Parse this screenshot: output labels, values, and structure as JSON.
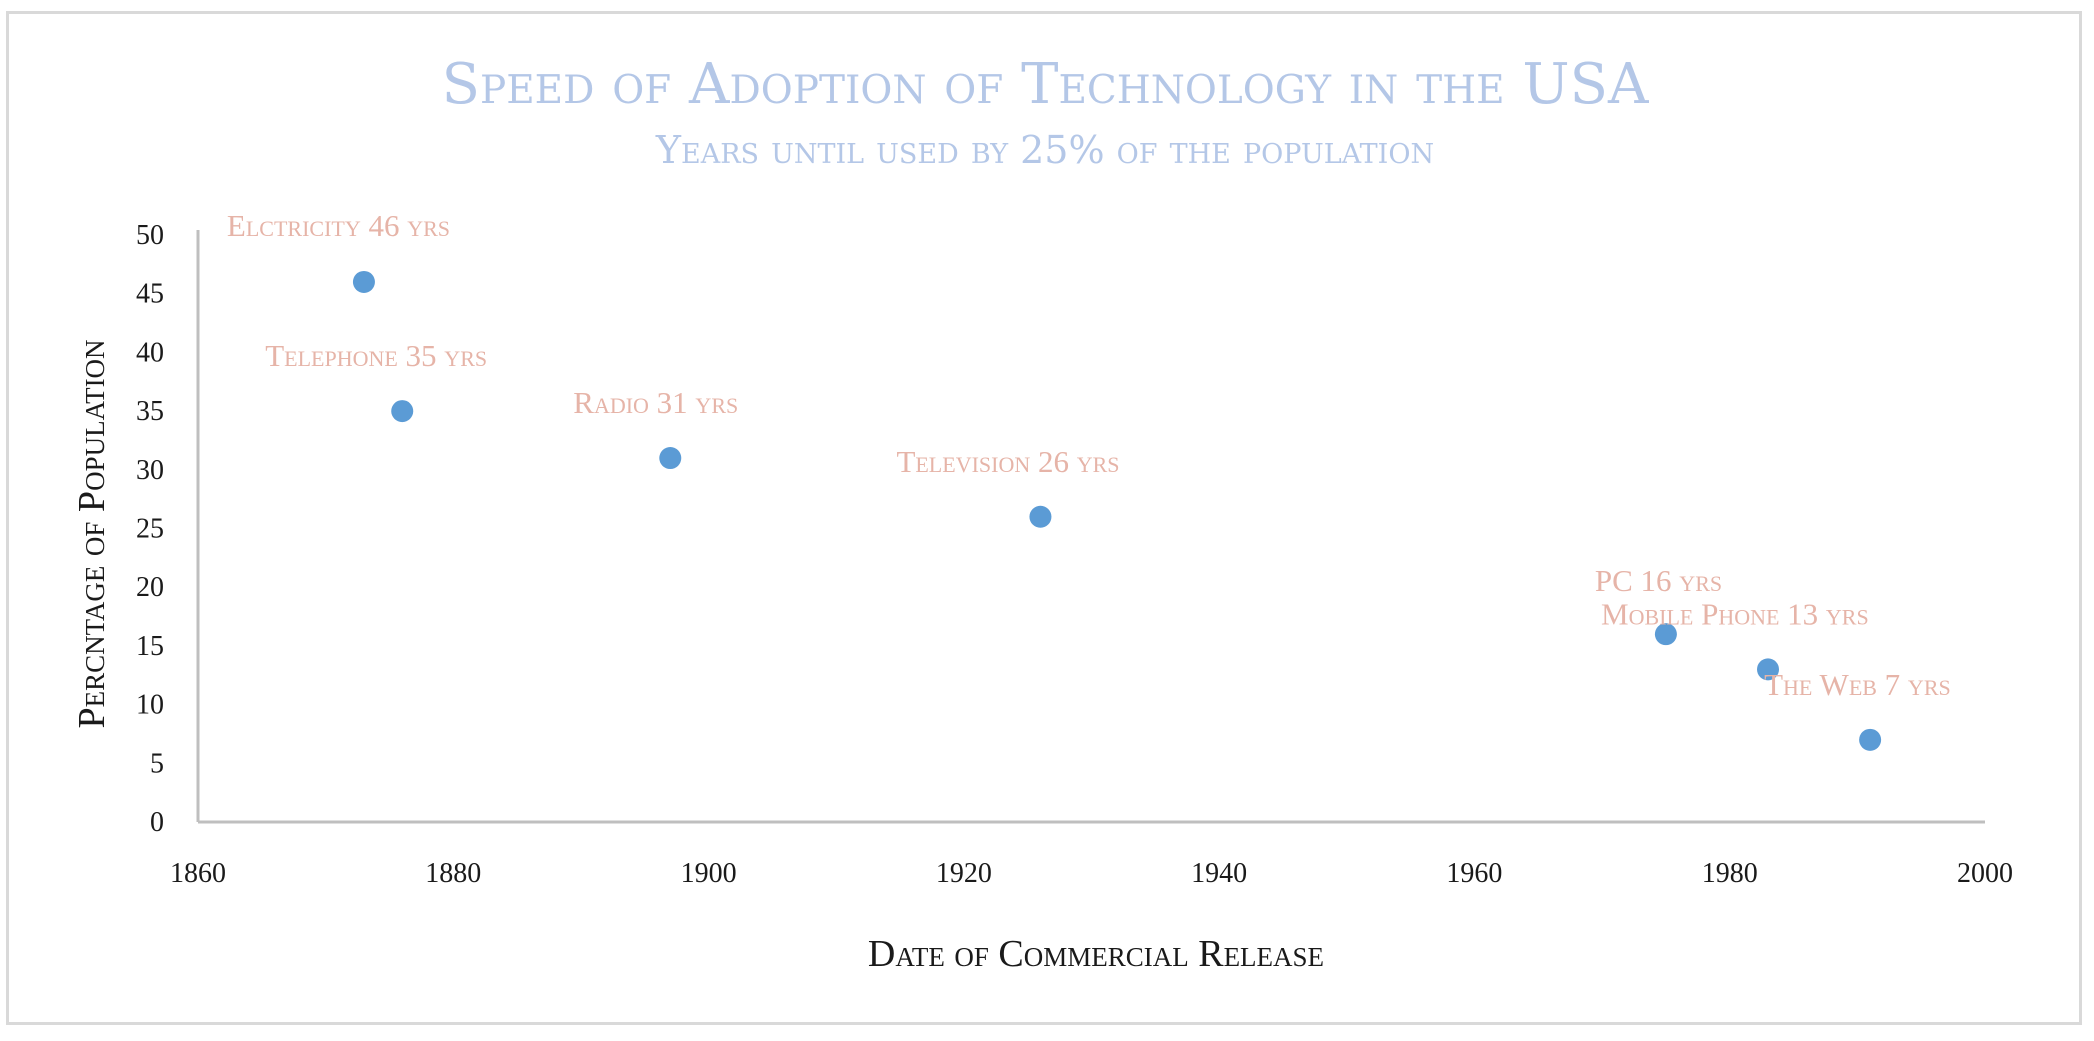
{
  "chart_data": {
    "type": "scatter",
    "title": "Speed of Adoption of Technology in the USA",
    "subtitle": "Years until used by 25% of the population",
    "xlabel": "Date of Commercial Release",
    "ylabel": "Percntage of Population",
    "xlim": [
      1860,
      2000
    ],
    "ylim": [
      0,
      50
    ],
    "x_ticks": [
      1860,
      1880,
      1900,
      1920,
      1940,
      1960,
      1980,
      2000
    ],
    "y_ticks": [
      0,
      5,
      10,
      15,
      20,
      25,
      30,
      35,
      40,
      45,
      50
    ],
    "grid": false,
    "legend": false,
    "series": [
      {
        "points": [
          {
            "x": 1873,
            "y": 46,
            "label": "Elctricity 46 yrs"
          },
          {
            "x": 1876,
            "y": 35,
            "label": "Telephone 35 yrs"
          },
          {
            "x": 1897,
            "y": 31,
            "label": "Radio 31 yrs"
          },
          {
            "x": 1926,
            "y": 26,
            "label": "Television 26 yrs"
          },
          {
            "x": 1975,
            "y": 16,
            "label": "PC 16 yrs"
          },
          {
            "x": 1983,
            "y": 13,
            "label": "Mobile Phone 13 yrs"
          },
          {
            "x": 1991,
            "y": 7,
            "label": "The Web 7 yrs"
          }
        ]
      }
    ],
    "colors": {
      "title": "#b4c7e7",
      "point": "#5b9bd5",
      "label": "#e6b4a8",
      "axis": "#bfbfbf"
    }
  }
}
